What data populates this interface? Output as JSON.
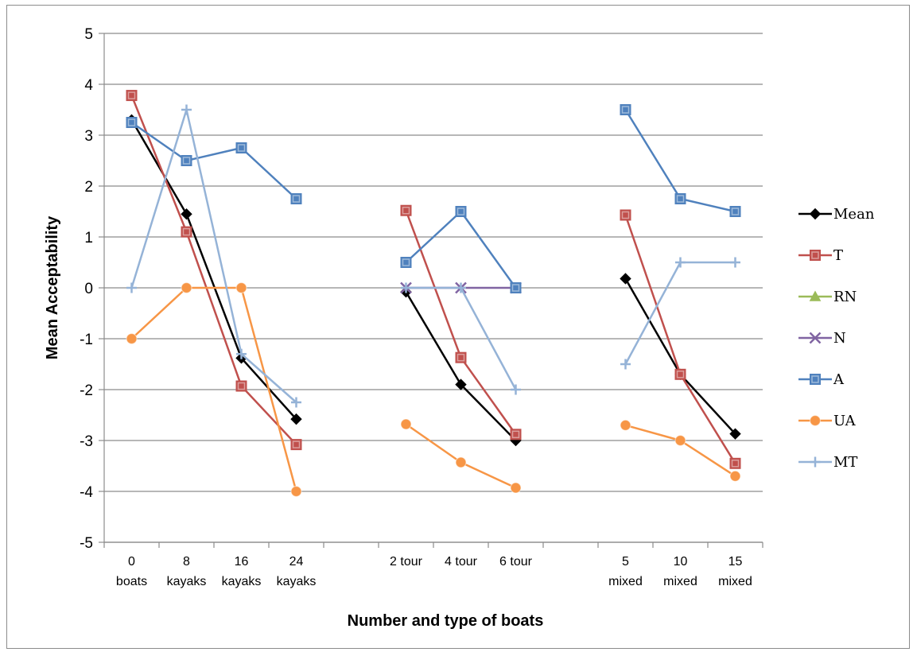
{
  "chart_data": {
    "type": "line",
    "title": "",
    "xlabel": "Number and type of boats",
    "ylabel": "Mean Acceptability",
    "ylim": [
      -5,
      5
    ],
    "yticks": [
      "5",
      "4",
      "3",
      "2",
      "1",
      "0",
      "-1",
      "-2",
      "-3",
      "-4",
      "-5"
    ],
    "grid": "horizontal",
    "legend_position": "right",
    "categories": [
      {
        "line1": "0",
        "line2": "boats"
      },
      {
        "line1": "8",
        "line2": "kayaks"
      },
      {
        "line1": "16",
        "line2": "kayaks"
      },
      {
        "line1": "24",
        "line2": "kayaks"
      },
      {
        "line1": "",
        "line2": ""
      },
      {
        "line1": "2 tour",
        "line2": ""
      },
      {
        "line1": "4 tour",
        "line2": ""
      },
      {
        "line1": "6 tour",
        "line2": ""
      },
      {
        "line1": "",
        "line2": ""
      },
      {
        "line1": "5",
        "line2": "mixed"
      },
      {
        "line1": "10",
        "line2": "mixed"
      },
      {
        "line1": "15",
        "line2": "mixed"
      }
    ],
    "series": [
      {
        "name": "Mean",
        "color": "#000000",
        "marker": "diamond",
        "values": [
          3.3,
          1.45,
          -1.38,
          -2.58,
          null,
          -0.08,
          -1.9,
          -3.0,
          null,
          0.18,
          -1.7,
          -2.87
        ]
      },
      {
        "name": "T",
        "color": "#c0504d",
        "marker": "square",
        "values": [
          3.78,
          1.1,
          -1.93,
          -3.08,
          null,
          1.52,
          -1.37,
          -2.88,
          null,
          1.43,
          -1.7,
          -3.45
        ]
      },
      {
        "name": "RN",
        "color": "#9bbb59",
        "marker": "triangle",
        "values": [
          null,
          null,
          null,
          null,
          null,
          null,
          null,
          null,
          null,
          null,
          null,
          null
        ]
      },
      {
        "name": "N",
        "color": "#8064a2",
        "marker": "x",
        "values": [
          null,
          null,
          null,
          null,
          null,
          0,
          0,
          0,
          null,
          null,
          null,
          null
        ]
      },
      {
        "name": "A",
        "color": "#4f81bd",
        "marker": "square",
        "values": [
          3.25,
          2.5,
          2.75,
          1.75,
          null,
          0.5,
          1.5,
          0,
          null,
          3.5,
          1.75,
          1.5
        ]
      },
      {
        "name": "UA",
        "color": "#f79646",
        "marker": "circle",
        "values": [
          -1.0,
          0,
          0,
          -4.0,
          null,
          -2.68,
          -3.43,
          -3.93,
          null,
          -2.7,
          -3.0,
          -3.7
        ]
      },
      {
        "name": "MT",
        "color": "#95b3d7",
        "marker": "plus",
        "values": [
          0,
          3.5,
          -1.3,
          -2.25,
          null,
          0,
          0,
          -2.0,
          null,
          -1.5,
          0.5,
          0.5
        ]
      }
    ]
  }
}
